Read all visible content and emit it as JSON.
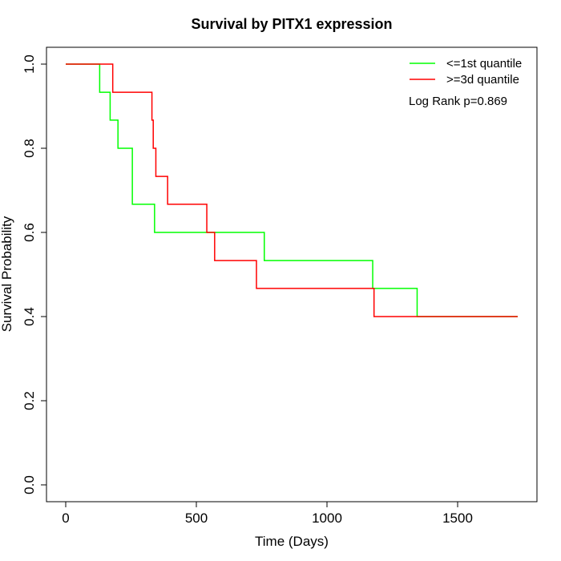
{
  "chart_data": {
    "type": "line",
    "title": "Survival by PITX1 expression",
    "xlabel": "Time (Days)",
    "ylabel": "Survival Probability",
    "xlim": [
      0,
      1730
    ],
    "ylim": [
      0,
      1
    ],
    "x_ticks": [
      0,
      500,
      1000,
      1500
    ],
    "y_ticks": [
      0.0,
      0.2,
      0.4,
      0.6,
      0.8,
      1.0
    ],
    "y_tick_labels": [
      "0.0",
      "0.2",
      "0.4",
      "0.6",
      "0.8",
      "1.0"
    ],
    "legend_position": "top-right",
    "annotation": "Log Rank p=0.869",
    "series": [
      {
        "name": "<=1st quantile",
        "color": "#00ff00",
        "step": true,
        "x": [
          0,
          130,
          170,
          200,
          255,
          340,
          760,
          1175,
          1345,
          1730
        ],
        "y": [
          1.0,
          0.933,
          0.867,
          0.8,
          0.667,
          0.6,
          0.533,
          0.467,
          0.4,
          0.4
        ]
      },
      {
        "name": ">=3d quantile",
        "color": "#ff0000",
        "step": true,
        "x": [
          0,
          180,
          330,
          335,
          345,
          390,
          540,
          570,
          730,
          1180,
          1730
        ],
        "y": [
          1.0,
          0.933,
          0.867,
          0.8,
          0.733,
          0.667,
          0.6,
          0.533,
          0.467,
          0.4,
          0.4
        ]
      }
    ]
  }
}
